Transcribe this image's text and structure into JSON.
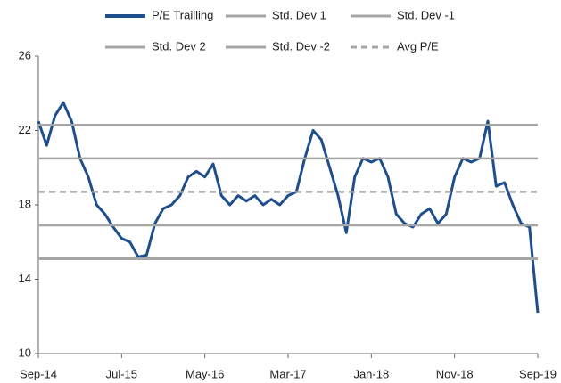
{
  "chart_data": {
    "type": "line",
    "categories": [
      "Sep-14",
      null,
      null,
      null,
      null,
      null,
      null,
      null,
      null,
      null,
      "Jul-15",
      null,
      null,
      null,
      null,
      null,
      null,
      null,
      null,
      null,
      "May-16",
      null,
      null,
      null,
      null,
      null,
      null,
      null,
      null,
      null,
      "Mar-17",
      null,
      null,
      null,
      null,
      null,
      null,
      null,
      null,
      null,
      "Jan-18",
      null,
      null,
      null,
      null,
      null,
      null,
      null,
      null,
      null,
      "Nov-18",
      null,
      null,
      null,
      null,
      null,
      null,
      null,
      null,
      null,
      "Sep-19"
    ],
    "series": [
      {
        "name": "P/E Trailling",
        "color": "#1f4e8c",
        "values": [
          22.5,
          21.2,
          22.8,
          23.5,
          22.5,
          20.5,
          19.5,
          18.0,
          17.5,
          16.8,
          16.2,
          16.0,
          15.2,
          15.3,
          17.0,
          17.8,
          18.0,
          18.5,
          19.5,
          19.8,
          19.5,
          20.2,
          18.5,
          18.0,
          18.5,
          18.2,
          18.5,
          18.0,
          18.3,
          18.0,
          18.5,
          18.7,
          20.5,
          22.0,
          21.5,
          20.0,
          18.5,
          16.5,
          19.5,
          20.5,
          20.3,
          20.5,
          19.5,
          17.5,
          17.0,
          16.8,
          17.5,
          17.8,
          17.0,
          17.5,
          19.5,
          20.5,
          20.3,
          20.5,
          22.5,
          19.0,
          19.2,
          18.0,
          17.0,
          16.8,
          12.2
        ]
      },
      {
        "name": "Std. Dev 1",
        "color": "#a6a6a6",
        "value": 20.5
      },
      {
        "name": "Std. Dev -1",
        "color": "#a6a6a6",
        "value": 16.9
      },
      {
        "name": "Std. Dev 2",
        "color": "#a6a6a6",
        "value": 22.3
      },
      {
        "name": "Std. Dev -2",
        "color": "#a6a6a6",
        "value": 15.1
      },
      {
        "name": "Avg P/E",
        "color": "#a6a6a6",
        "value": 18.7,
        "dashed": true
      }
    ],
    "ylim": [
      10,
      26
    ],
    "yticks": [
      10,
      14,
      18,
      22,
      26
    ],
    "grid": false
  }
}
